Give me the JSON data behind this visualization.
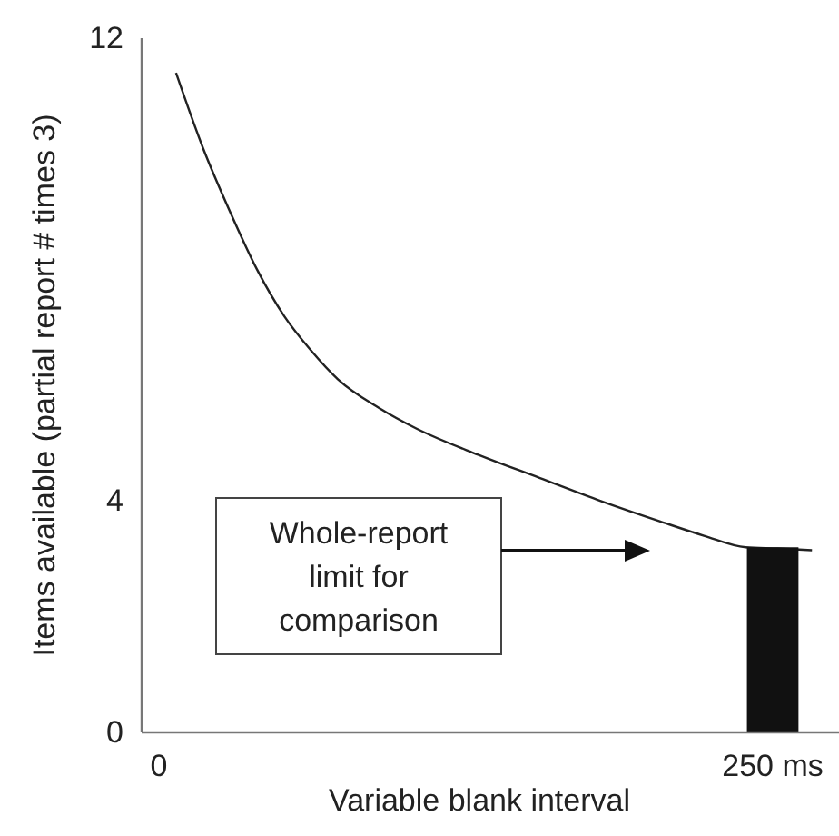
{
  "chart_data": {
    "type": "line",
    "xlabel": "Variable blank interval",
    "ylabel": "Items available (partial report # times 3)",
    "xlim": [
      -7,
      277
    ],
    "ylim": [
      0,
      12
    ],
    "xticks": [
      0,
      {
        "value": 250,
        "label": "250 ms"
      }
    ],
    "yticks": [
      0,
      4,
      12
    ],
    "series": [
      {
        "color": "#222222",
        "x": [
          7,
          18,
          29,
          40,
          51,
          62,
          73,
          90,
          105,
          130,
          155,
          180,
          204,
          222,
          239,
          252,
          266
        ],
        "values": [
          11.4,
          10.1,
          9.0,
          8.0,
          7.2,
          6.6,
          6.1,
          5.6,
          5.25,
          4.8,
          4.4,
          4.0,
          3.65,
          3.4,
          3.2,
          3.18,
          3.15
        ]
      },
      {
        "type": "bar",
        "color": "#111111",
        "x": [
          250
        ],
        "values": [
          3.2
        ]
      }
    ],
    "annotations": [
      "Whole-report limit for comparison"
    ]
  }
}
